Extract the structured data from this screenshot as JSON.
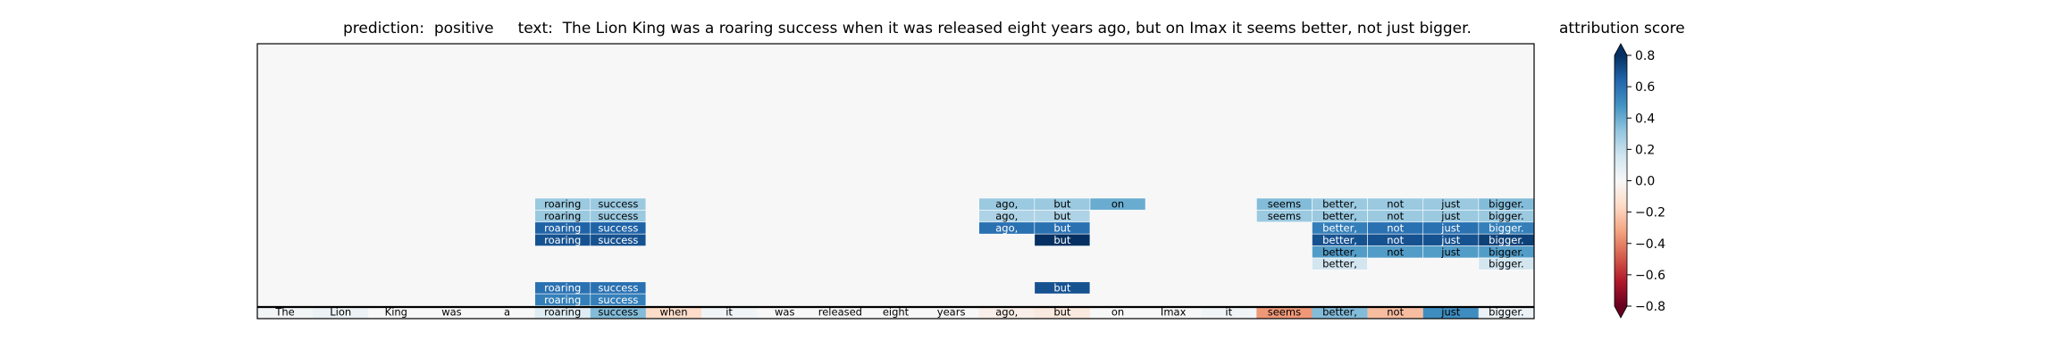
{
  "chart_data": {
    "type": "heatmap",
    "title": {
      "prediction_label": "prediction:",
      "prediction": "positive",
      "text_label": "text:",
      "text": "The Lion King was a roaring success when it was released eight years ago, but on Imax it seems better, not just bigger."
    },
    "tokens": [
      "The",
      "Lion",
      "King",
      "was",
      "a",
      "roaring",
      "success",
      "when",
      "it",
      "was",
      "released",
      "eight",
      "years",
      "ago,",
      "but",
      "on",
      "Imax",
      "it",
      "seems",
      "better,",
      "not",
      "just",
      "bigger."
    ],
    "token_attribution": [
      0.02,
      0.05,
      0.0,
      0.0,
      0.0,
      0.1,
      0.35,
      -0.15,
      0.03,
      0.0,
      0.0,
      0.0,
      0.0,
      -0.05,
      -0.08,
      0.0,
      0.0,
      0.03,
      -0.35,
      0.35,
      -0.25,
      0.5,
      0.05
    ],
    "layer_cells": [
      {
        "row": 0,
        "token": 5,
        "value": 0.3
      },
      {
        "row": 0,
        "token": 6,
        "value": 0.3
      },
      {
        "row": 0,
        "token": 13,
        "value": 0.3
      },
      {
        "row": 0,
        "token": 14,
        "value": 0.3
      },
      {
        "row": 0,
        "token": 15,
        "value": 0.4
      },
      {
        "row": 0,
        "token": 18,
        "value": 0.35
      },
      {
        "row": 0,
        "token": 19,
        "value": 0.3
      },
      {
        "row": 0,
        "token": 20,
        "value": 0.3
      },
      {
        "row": 0,
        "token": 21,
        "value": 0.3
      },
      {
        "row": 0,
        "token": 22,
        "value": 0.35
      },
      {
        "row": 1,
        "token": 5,
        "value": 0.3
      },
      {
        "row": 1,
        "token": 6,
        "value": 0.3
      },
      {
        "row": 1,
        "token": 13,
        "value": 0.25
      },
      {
        "row": 1,
        "token": 14,
        "value": 0.25
      },
      {
        "row": 1,
        "token": 18,
        "value": 0.3
      },
      {
        "row": 1,
        "token": 19,
        "value": 0.3
      },
      {
        "row": 1,
        "token": 20,
        "value": 0.3
      },
      {
        "row": 1,
        "token": 21,
        "value": 0.3
      },
      {
        "row": 1,
        "token": 22,
        "value": 0.3
      },
      {
        "row": 2,
        "token": 5,
        "value": 0.65
      },
      {
        "row": 2,
        "token": 6,
        "value": 0.65
      },
      {
        "row": 2,
        "token": 13,
        "value": 0.6
      },
      {
        "row": 2,
        "token": 14,
        "value": 0.6
      },
      {
        "row": 2,
        "token": 19,
        "value": 0.55
      },
      {
        "row": 2,
        "token": 20,
        "value": 0.6
      },
      {
        "row": 2,
        "token": 21,
        "value": 0.6
      },
      {
        "row": 2,
        "token": 22,
        "value": 0.55
      },
      {
        "row": 3,
        "token": 5,
        "value": 0.7
      },
      {
        "row": 3,
        "token": 6,
        "value": 0.7
      },
      {
        "row": 3,
        "token": 14,
        "value": 0.85
      },
      {
        "row": 3,
        "token": 19,
        "value": 0.7
      },
      {
        "row": 3,
        "token": 20,
        "value": 0.7
      },
      {
        "row": 3,
        "token": 21,
        "value": 0.7
      },
      {
        "row": 3,
        "token": 22,
        "value": 0.75
      },
      {
        "row": 4,
        "token": 19,
        "value": 0.45
      },
      {
        "row": 4,
        "token": 20,
        "value": 0.45
      },
      {
        "row": 4,
        "token": 21,
        "value": 0.45
      },
      {
        "row": 4,
        "token": 22,
        "value": 0.45
      },
      {
        "row": 5,
        "token": 19,
        "value": 0.15
      },
      {
        "row": 5,
        "token": 22,
        "value": 0.15
      },
      {
        "row": 7,
        "token": 5,
        "value": 0.6
      },
      {
        "row": 7,
        "token": 6,
        "value": 0.6
      },
      {
        "row": 7,
        "token": 14,
        "value": 0.7
      },
      {
        "row": 8,
        "token": 5,
        "value": 0.55
      },
      {
        "row": 8,
        "token": 6,
        "value": 0.55
      },
      {
        "row": 9,
        "token": 20,
        "value": 0.0
      },
      {
        "row": 9,
        "token": 21,
        "value": 0.0
      }
    ],
    "colorbar": {
      "label": "attribution score",
      "vmin": -0.8,
      "vmax": 0.8,
      "ticks": [
        "0.8",
        "0.6",
        "0.4",
        "0.2",
        "0.0",
        "−0.2",
        "−0.4",
        "−0.6",
        "−0.8"
      ],
      "tick_values": [
        0.8,
        0.6,
        0.4,
        0.2,
        0.0,
        -0.2,
        -0.4,
        -0.6,
        -0.8
      ],
      "colormap": "RdBu"
    }
  }
}
